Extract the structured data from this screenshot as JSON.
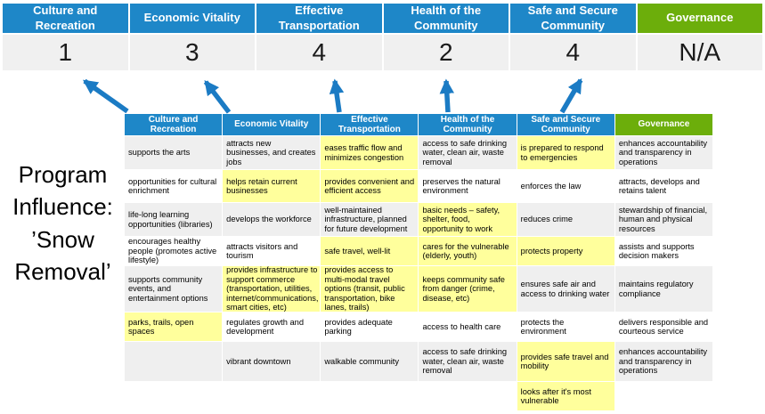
{
  "colors": {
    "header_blue": "#1E87C8",
    "header_green": "#6CAE0B",
    "highlight_yellow": "#FFFF9C",
    "row_band_gray": "#EFEFEF",
    "arrow_blue": "#1B7BC4",
    "score_bg": "#F0F0F0"
  },
  "program_label": "Program Influence: ’Snow Removal’",
  "summary": {
    "columns": [
      {
        "label": "Culture and Recreation",
        "score": "1"
      },
      {
        "label": "Economic Vitality",
        "score": "3"
      },
      {
        "label": "Effective Transportation",
        "score": "4"
      },
      {
        "label": "Health of the Community",
        "score": "2"
      },
      {
        "label": "Safe and Secure Community",
        "score": "4"
      },
      {
        "label": "Governance",
        "score": "N/A"
      }
    ]
  },
  "matrix": {
    "headers": [
      "Culture and Recreation",
      "Economic Vitality",
      "Effective Transportation",
      "Health of the Community",
      "Safe and Secure Community",
      "Governance"
    ],
    "rows": [
      [
        {
          "t": "supports the arts",
          "h": false
        },
        {
          "t": "attracts new businesses, and creates jobs",
          "h": false
        },
        {
          "t": "eases traffic flow and minimizes congestion",
          "h": true
        },
        {
          "t": "access to safe drinking water, clean air, waste removal",
          "h": false
        },
        {
          "t": "is prepared to respond to emergencies",
          "h": true
        },
        {
          "t": "enhances accountability and transparency in operations",
          "h": false
        }
      ],
      [
        {
          "t": "opportunities for cultural enrichment",
          "h": false
        },
        {
          "t": "helps retain current businesses",
          "h": true
        },
        {
          "t": "provides convenient and efficient access",
          "h": true
        },
        {
          "t": "preserves the natural environment",
          "h": false
        },
        {
          "t": "enforces the law",
          "h": false
        },
        {
          "t": "attracts, develops and retains talent",
          "h": false
        }
      ],
      [
        {
          "t": "life-long learning opportunities (libraries)",
          "h": false
        },
        {
          "t": "develops the workforce",
          "h": false
        },
        {
          "t": "well-maintained infrastructure, planned for future development",
          "h": false
        },
        {
          "t": "basic needs – safety, shelter, food, opportunity to work",
          "h": true
        },
        {
          "t": "reduces crime",
          "h": false
        },
        {
          "t": "stewardship of financial, human and physical resources",
          "h": false
        }
      ],
      [
        {
          "t": "encourages healthy people (promotes active lifestyle)",
          "h": false
        },
        {
          "t": "attracts visitors and tourism",
          "h": false
        },
        {
          "t": "safe travel, well-lit",
          "h": true
        },
        {
          "t": "cares for the vulnerable (elderly, youth)",
          "h": true
        },
        {
          "t": "protects property",
          "h": true
        },
        {
          "t": "assists and supports decision makers",
          "h": false
        }
      ],
      [
        {
          "t": "supports community events, and entertainment options",
          "h": false
        },
        {
          "t": "provides infrastructure to support commerce (transportation, utilities, internet/communications, smart cities, etc)",
          "h": true
        },
        {
          "t": "provides access to multi-modal travel options (transit, public transportation, bike lanes, trails)",
          "h": true
        },
        {
          "t": "keeps community safe from danger (crime, disease, etc)",
          "h": true
        },
        {
          "t": "ensures safe air and access to drinking water",
          "h": false
        },
        {
          "t": "maintains regulatory compliance",
          "h": false
        }
      ],
      [
        {
          "t": "parks, trails, open spaces",
          "h": true
        },
        {
          "t": "regulates growth and development",
          "h": false
        },
        {
          "t": "provides adequate parking",
          "h": false
        },
        {
          "t": "access to health care",
          "h": false
        },
        {
          "t": "protects the environment",
          "h": false
        },
        {
          "t": "delivers responsible and courteous service",
          "h": false
        }
      ],
      [
        {
          "t": "",
          "h": false
        },
        {
          "t": "vibrant downtown",
          "h": false
        },
        {
          "t": "walkable community",
          "h": false
        },
        {
          "t": "access to safe drinking water, clean air, waste removal",
          "h": false
        },
        {
          "t": "provides safe travel and mobility",
          "h": true
        },
        {
          "t": "enhances accountability and transparency in operations",
          "h": false
        }
      ],
      [
        {
          "t": "",
          "h": false
        },
        {
          "t": "",
          "h": false
        },
        {
          "t": "",
          "h": false
        },
        {
          "t": "",
          "h": false
        },
        {
          "t": "looks after it's most vulnerable",
          "h": true
        },
        {
          "t": "",
          "h": false
        }
      ]
    ]
  }
}
